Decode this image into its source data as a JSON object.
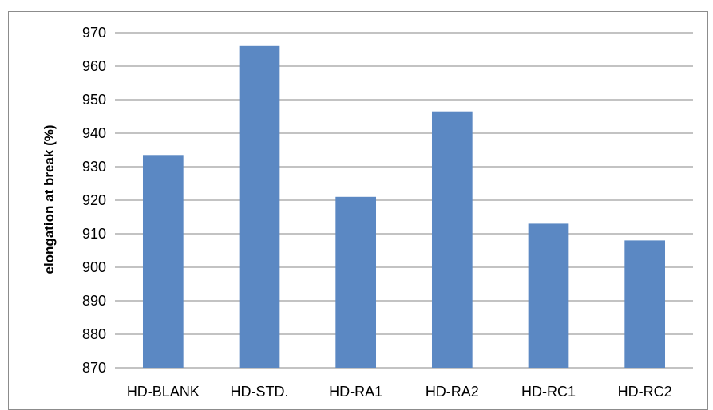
{
  "chart_data": {
    "type": "bar",
    "title": "",
    "xlabel": "",
    "ylabel": "elongation at break (%)",
    "categories": [
      "HD-BLANK",
      "HD-STD.",
      "HD-RA1",
      "HD-RA2",
      "HD-RC1",
      "HD-RC2"
    ],
    "values": [
      933.5,
      966,
      921,
      946.5,
      913,
      908
    ],
    "ylim": [
      870,
      970
    ],
    "yticks": [
      870,
      880,
      890,
      900,
      910,
      920,
      930,
      940,
      950,
      960,
      970
    ],
    "grid": true,
    "legend": "none",
    "colors": {
      "bar": "#5b88c3",
      "grid": "#878787"
    }
  }
}
